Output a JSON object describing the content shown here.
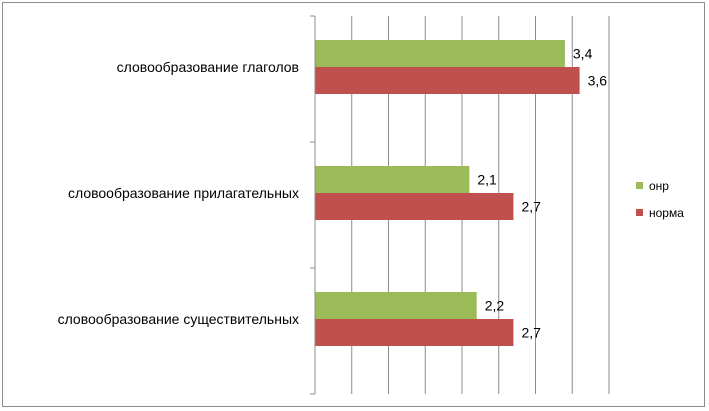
{
  "chart_data": {
    "type": "bar",
    "orientation": "horizontal",
    "categories": [
      "словообразование глаголов",
      "словообразование прилагательных",
      "словообразование  существительных"
    ],
    "category_labels": [
      "словообразование глаголов",
      "словообразование прилагательных",
      "словообразование  существительных"
    ],
    "series": [
      {
        "name": "онр",
        "values": [
          3.4,
          2.1,
          2.2
        ],
        "labels": [
          "3,4",
          "2,1",
          "2,2"
        ],
        "color": "#9BBB59"
      },
      {
        "name": "норма",
        "values": [
          3.6,
          2.7,
          2.7
        ],
        "labels": [
          "3,6",
          "2,7",
          "2,7"
        ],
        "color": "#C0504D"
      }
    ],
    "xlim": [
      0,
      4
    ],
    "grid": "vertical",
    "legend_position": "right"
  }
}
